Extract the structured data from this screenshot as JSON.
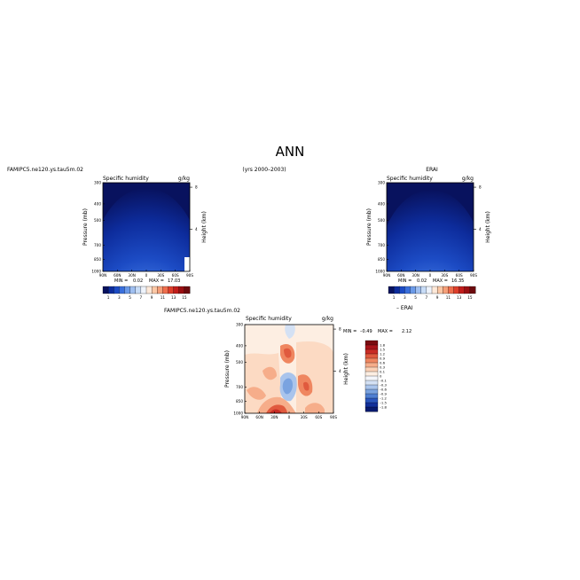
{
  "figure": {
    "title": "ANN",
    "case_label": "FAMIPC5.ne120.ys.tau5m.02",
    "years_label": "(yrs 2000–2003)",
    "obs_label": "ERAI",
    "diff_label": "FAMIPC5.ne120.ys.tau5m.02",
    "diff_obs_label": "– ERAI"
  },
  "chart_data": [
    {
      "id": "model",
      "type": "heatmap",
      "title": "Specific humidity",
      "units": "g/kg",
      "ylabel": "Pressure (mb)",
      "ylabel_right": "Height (km)",
      "x_ticks": [
        "90N",
        "60N",
        "30N",
        "0",
        "30S",
        "60S",
        "90S"
      ],
      "y_ticks": [
        1000,
        850,
        700,
        500,
        400,
        300
      ],
      "y_ticks_right": [
        4,
        8
      ],
      "ylim": [
        1000,
        300
      ],
      "min_label": "MIN =",
      "min_value": "0.02",
      "max_label": "MAX =",
      "max_value": "17.03",
      "colorbar_ticks": [
        "1",
        "3",
        "5",
        "7",
        "9",
        "11",
        "13",
        "15"
      ],
      "colorbar_colors": [
        "#08125e",
        "#0d2c9c",
        "#1c4bc4",
        "#3a6fdc",
        "#6b9ae8",
        "#9fbff0",
        "#c8dcf6",
        "#eef3fb",
        "#fde9d9",
        "#fbc8a6",
        "#f5a07a",
        "#ee6f4e",
        "#de3f2c",
        "#c11d1b",
        "#9a0f12",
        "#6c0a0e"
      ]
    },
    {
      "id": "obs",
      "type": "heatmap",
      "title": "Specific humidity",
      "units": "g/kg",
      "ylabel": "Pressure (mb)",
      "ylabel_right": "Height (km)",
      "x_ticks": [
        "90N",
        "60N",
        "30N",
        "0",
        "30S",
        "60S",
        "90S"
      ],
      "y_ticks": [
        1000,
        850,
        700,
        500,
        400,
        300
      ],
      "y_ticks_right": [
        4,
        8
      ],
      "ylim": [
        1000,
        300
      ],
      "min_label": "MIN =",
      "min_value": "0.02",
      "max_label": "MAX =",
      "max_value": "16.35",
      "colorbar_ticks": [
        "1",
        "3",
        "5",
        "7",
        "9",
        "11",
        "13",
        "15"
      ],
      "colorbar_colors": [
        "#08125e",
        "#0d2c9c",
        "#1c4bc4",
        "#3a6fdc",
        "#6b9ae8",
        "#9fbff0",
        "#c8dcf6",
        "#eef3fb",
        "#fde9d9",
        "#fbc8a6",
        "#f5a07a",
        "#ee6f4e",
        "#de3f2c",
        "#c11d1b",
        "#9a0f12",
        "#6c0a0e"
      ]
    },
    {
      "id": "diff",
      "type": "heatmap",
      "title": "Specific humidity",
      "units": "g/kg",
      "ylabel": "Pressure (mb)",
      "ylabel_right": "Height (km)",
      "x_ticks": [
        "90N",
        "60N",
        "30N",
        "0",
        "30S",
        "60S",
        "90S"
      ],
      "y_ticks": [
        1000,
        850,
        700,
        500,
        400,
        300
      ],
      "y_ticks_right": [
        4,
        8
      ],
      "ylim": [
        1000,
        300
      ],
      "min_label": "MIN =",
      "min_value": "–0.49",
      "max_label": "MAX =",
      "max_value": "2.12",
      "colorbar_ticks": [
        "1.8",
        "1.5",
        "1.2",
        "0.9",
        "0.6",
        "0.3",
        "0.1",
        "0",
        "–0.1",
        "–0.3",
        "–0.6",
        "–0.9",
        "–1.2",
        "–1.5",
        "–1.8"
      ],
      "colorbar_colors": [
        "#7a0c10",
        "#a8141a",
        "#c92c25",
        "#e05a3e",
        "#ef8660",
        "#f6ad8a",
        "#fbd1b6",
        "#fdeee2",
        "#f4f6fb",
        "#d4e1f4",
        "#a9c4ec",
        "#7aa3e0",
        "#4f7fd2",
        "#2a56bd",
        "#12309a",
        "#081a6e"
      ]
    }
  ]
}
